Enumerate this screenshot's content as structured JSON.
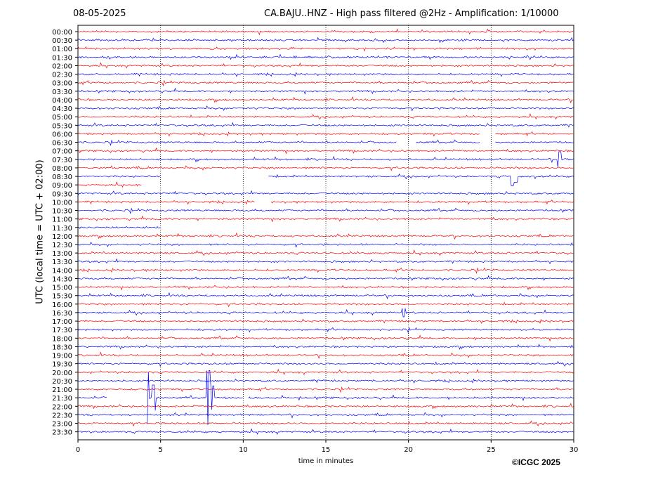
{
  "chart_data": {
    "type": "line",
    "title": "CA.BAJU..HNZ - High pass filtered @2Hz - Amplification: 1/10000",
    "date": "08-05-2025",
    "xlabel": "time in minutes",
    "ylabel": "UTC (local time = UTC + 02:00)",
    "xlim": [
      0,
      30
    ],
    "xticks": [
      "0",
      "5",
      "10",
      "15",
      "20",
      "25",
      "30"
    ],
    "grid": "vertical dotted at each 5 minutes",
    "rows": [
      "00:00",
      "00:30",
      "01:00",
      "01:30",
      "02:00",
      "02:30",
      "03:00",
      "03:30",
      "04:00",
      "04:30",
      "05:00",
      "05:30",
      "06:00",
      "06:30",
      "07:00",
      "07:30",
      "08:00",
      "08:30",
      "09:00",
      "09:30",
      "10:00",
      "10:30",
      "11:00",
      "11:30",
      "12:00",
      "12:30",
      "13:00",
      "13:30",
      "14:00",
      "14:30",
      "15:00",
      "15:30",
      "16:00",
      "16:30",
      "17:00",
      "17:30",
      "18:00",
      "18:30",
      "19:00",
      "19:30",
      "20:00",
      "20:30",
      "21:00",
      "21:30",
      "22:00",
      "22:30",
      "23:00",
      "23:30"
    ],
    "series_colors": [
      "#ff0000",
      "#0000ff"
    ],
    "gaps": [
      {
        "row": "06:00",
        "from": 24.3,
        "to": 25.2
      },
      {
        "row": "06:30",
        "from": 19.3,
        "to": 20.4
      },
      {
        "row": "06:30",
        "from": 24.3,
        "to": 25.2
      },
      {
        "row": "08:30",
        "from": 5.0,
        "to": 11.5
      },
      {
        "row": "09:00",
        "from": 3.9,
        "to": 30
      },
      {
        "row": "10:00",
        "from": 10.7,
        "to": 11.7
      },
      {
        "row": "11:30",
        "from": 5.0,
        "to": 30
      },
      {
        "row": "21:30",
        "from": 1.8,
        "to": 4.2
      },
      {
        "row": "21:30",
        "from": 10.0,
        "to": 10.3
      }
    ],
    "events": [
      {
        "row": "07:30",
        "minute": 29.1,
        "amplitude": 0.9
      },
      {
        "row": "08:30",
        "minute": 26.3,
        "amplitude": 1.1
      },
      {
        "row": "08:30",
        "minute": 26.5,
        "amplitude": 0.7
      },
      {
        "row": "16:30",
        "minute": 19.7,
        "amplitude": 0.5
      },
      {
        "row": "21:30",
        "minute": 4.2,
        "amplitude": 3.0
      },
      {
        "row": "21:30",
        "minute": 4.6,
        "amplitude": 1.5
      },
      {
        "row": "21:30",
        "minute": 7.9,
        "amplitude": 3.2
      },
      {
        "row": "21:30",
        "minute": 8.1,
        "amplitude": 1.4
      }
    ]
  },
  "footer": {
    "copyright": "©ICGC 2025"
  }
}
